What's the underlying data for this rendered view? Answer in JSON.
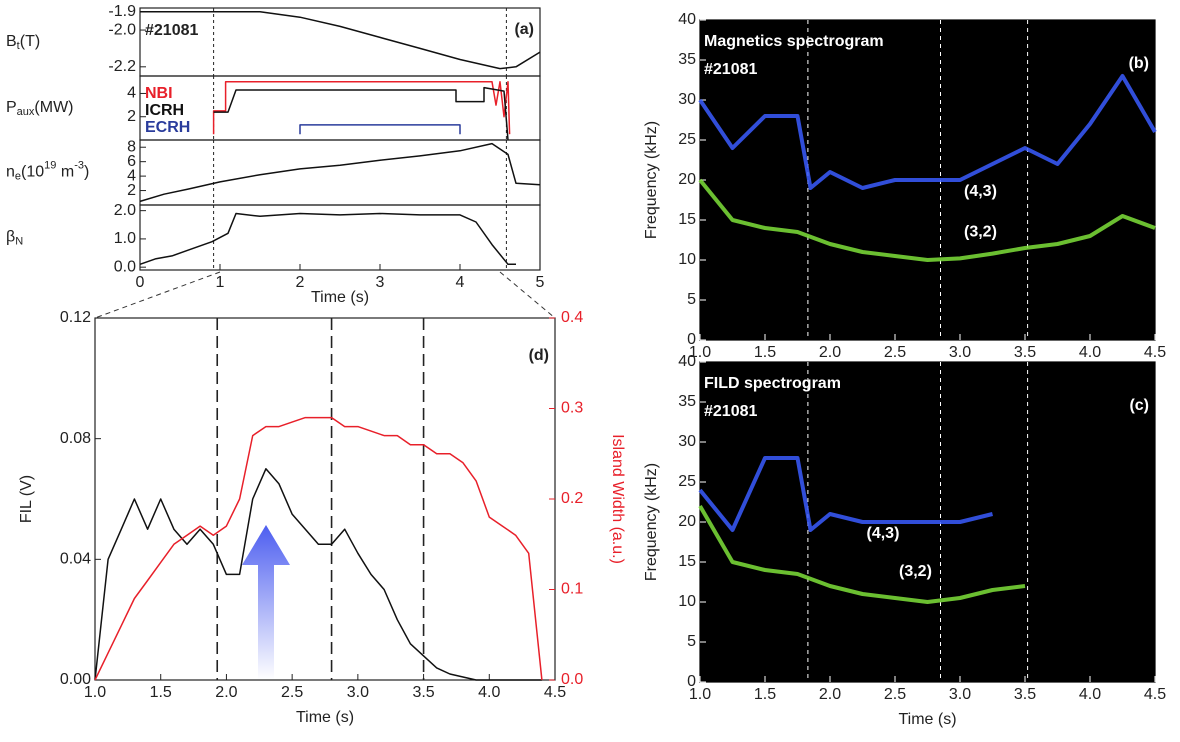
{
  "chart_data": [
    {
      "type": "line",
      "xlim": [
        0,
        5
      ],
      "ylim": [
        -2.25,
        -1.88
      ],
      "yticks": [
        -1.9,
        {
          "value": -2,
          "label": "-2.0"
        },
        -2.2
      ],
      "ylabel_parts": [
        {
          "text": "B"
        },
        {
          "text": "t",
          "script": "sub"
        },
        {
          "text": "(T)"
        }
      ],
      "annotation": "#21081",
      "label": "(a)",
      "vlines": [
        0.92,
        4.58
      ],
      "series": [
        {
          "color": "#111111",
          "x": [
            0,
            0.5,
            1,
            1.5,
            2,
            2.5,
            3,
            3.5,
            4,
            4.5,
            4.7,
            5
          ],
          "values": [
            -1.9,
            -1.9,
            -1.9,
            -1.9,
            -1.93,
            -1.98,
            -2.04,
            -2.1,
            -2.16,
            -2.21,
            -2.2,
            -2.12
          ]
        }
      ]
    },
    {
      "type": "line",
      "xlim": [
        0,
        5
      ],
      "ylim": [
        0,
        5.5
      ],
      "yticks": [
        2,
        4
      ],
      "legend": "upper left",
      "ylabel_parts": [
        {
          "text": "P"
        },
        {
          "text": "aux",
          "script": "sub"
        },
        {
          "text": "(MW)"
        }
      ],
      "vlines": [
        0.92,
        4.58
      ],
      "series": [
        {
          "name": "NBI",
          "color": "#e8202a",
          "x": [
            0.92,
            0.92,
            1.07,
            1.07,
            4.4,
            4.45,
            4.5,
            4.55,
            4.6,
            4.62
          ],
          "values": [
            0.5,
            2.5,
            2.5,
            5,
            5,
            3,
            5,
            2,
            5,
            0.5
          ]
        },
        {
          "name": "ICRH",
          "color": "#111111",
          "x": [
            0.92,
            1.1,
            1.2,
            3.95,
            3.95,
            4.3,
            4.3,
            4.55,
            4.6
          ],
          "values": [
            2.4,
            2.4,
            4.3,
            4.3,
            3.3,
            3.3,
            4.5,
            4.2,
            0
          ]
        },
        {
          "name": "ECRH",
          "color": "#2a3c9c",
          "x": [
            2,
            2,
            4,
            4
          ],
          "values": [
            0.5,
            1.3,
            1.3,
            0.5
          ]
        }
      ]
    },
    {
      "type": "line",
      "xlim": [
        0,
        5
      ],
      "ylim": [
        0,
        9
      ],
      "yticks": [
        2,
        4,
        6,
        8
      ],
      "ylabel_parts": [
        {
          "text": "n"
        },
        {
          "text": "e",
          "script": "sub"
        },
        {
          "text": "(10"
        },
        {
          "text": "19",
          "script": "sup"
        },
        {
          "text": " m"
        },
        {
          "text": "-3",
          "script": "sup"
        },
        {
          "text": ")"
        }
      ],
      "vlines": [
        0.92,
        4.58
      ],
      "series": [
        {
          "color": "#111111",
          "x": [
            0,
            0.3,
            0.6,
            1,
            1.5,
            2,
            2.5,
            3,
            3.5,
            4,
            4.4,
            4.6,
            4.7,
            5
          ],
          "values": [
            0.5,
            1.5,
            2.2,
            3.2,
            4.2,
            5,
            5.5,
            6.2,
            6.8,
            7.5,
            8.5,
            7,
            3,
            2.8
          ]
        }
      ]
    },
    {
      "type": "line",
      "xlim": [
        0,
        5
      ],
      "ylim": [
        -0.1,
        2.2
      ],
      "yticks": [
        {
          "value": 0,
          "label": "0.0"
        },
        {
          "value": 1,
          "label": "1.0"
        },
        {
          "value": 2,
          "label": "2.0"
        }
      ],
      "xticks": [
        0,
        1,
        2,
        3,
        4,
        5
      ],
      "xlabel": "Time (s)",
      "ylabel_parts": [
        {
          "text": "β"
        },
        {
          "text": "N",
          "script": "sub"
        }
      ],
      "vlines": [
        0.92,
        4.58
      ],
      "series": [
        {
          "color": "#111111",
          "x": [
            0,
            0.2,
            0.4,
            0.6,
            0.9,
            1.1,
            1.2,
            1.5,
            2,
            2.5,
            3,
            3.5,
            4,
            4.2,
            4.4,
            4.6,
            4.7
          ],
          "values": [
            0.1,
            0.3,
            0.4,
            0.6,
            0.9,
            1.2,
            1.9,
            1.8,
            1.9,
            1.85,
            1.9,
            1.85,
            1.85,
            1.6,
            0.8,
            0.1,
            0.1
          ]
        }
      ]
    },
    {
      "type": "line",
      "xlim": [
        1,
        4.5
      ],
      "ylim": [
        0,
        0.12
      ],
      "y2lim": [
        0,
        0.4
      ],
      "xticks": [
        {
          "value": 1,
          "label": "1.0"
        },
        1.5,
        {
          "value": 2,
          "label": "2.0"
        },
        2.5,
        {
          "value": 3,
          "label": "3.0"
        },
        3.5,
        {
          "value": 4,
          "label": "4.0"
        },
        4.5
      ],
      "yticks": [
        {
          "value": 0,
          "label": "0.00"
        },
        0.04,
        0.08,
        0.12
      ],
      "y2ticks": [
        {
          "value": 0,
          "label": "0.0"
        },
        0.1,
        0.2,
        0.3,
        0.4
      ],
      "xlabel": "Time (s)",
      "ylabel": "FIL (V)",
      "y2label": "Island Width (a.u.)",
      "y2color": "#e8202a",
      "label": "(d)",
      "vlines": [
        1.93,
        2.8,
        3.5
      ],
      "x": [
        1.0,
        1.1,
        1.2,
        1.3,
        1.4,
        1.5,
        1.6,
        1.7,
        1.8,
        1.9,
        2.0,
        2.1,
        2.2,
        2.3,
        2.4,
        2.5,
        2.6,
        2.7,
        2.8,
        2.9,
        3.0,
        3.1,
        3.2,
        3.3,
        3.4,
        3.5,
        3.6,
        3.7,
        3.8,
        3.9,
        4.0,
        4.1,
        4.2,
        4.3,
        4.4
      ],
      "series": [
        {
          "color": "#111111",
          "values": [
            0.0,
            0.04,
            0.05,
            0.06,
            0.05,
            0.06,
            0.05,
            0.045,
            0.05,
            0.045,
            0.035,
            0.035,
            0.06,
            0.07,
            0.065,
            0.055,
            0.05,
            0.045,
            0.045,
            0.05,
            0.042,
            0.035,
            0.03,
            0.02,
            0.012,
            0.008,
            0.004,
            0.002,
            0.001,
            0.0,
            0.0,
            0.0,
            0.0,
            0.0,
            0.0
          ]
        },
        {
          "color": "#e8202a",
          "axis": "y2",
          "values": [
            0.0,
            0.03,
            0.06,
            0.09,
            0.11,
            0.13,
            0.15,
            0.16,
            0.17,
            0.16,
            0.17,
            0.2,
            0.27,
            0.28,
            0.28,
            0.285,
            0.29,
            0.29,
            0.29,
            0.28,
            0.28,
            0.275,
            0.27,
            0.27,
            0.26,
            0.26,
            0.25,
            0.25,
            0.24,
            0.22,
            0.18,
            0.17,
            0.16,
            0.14,
            0.0
          ]
        }
      ]
    },
    {
      "type": "spectrogram",
      "xlim": [
        1,
        4.5
      ],
      "ylim": [
        0,
        40
      ],
      "yticks": [
        0,
        5,
        10,
        15,
        20,
        25,
        30,
        35,
        40
      ],
      "xticks": [
        {
          "value": 1,
          "label": "1.0"
        },
        1.5,
        {
          "value": 2,
          "label": "2.0"
        },
        2.5,
        {
          "value": 3,
          "label": "3.0"
        },
        3.5,
        {
          "value": 4,
          "label": "4.0"
        },
        4.5
      ],
      "ylabel": "Frequency (kHz)",
      "title": "Magnetics spectrogram",
      "subtitle": "#21081",
      "label": "(b)",
      "vlines": [
        1.83,
        2.85,
        3.52
      ],
      "series": [
        {
          "name": "(4,3)",
          "color": "#3a5cff",
          "x": [
            1.0,
            1.25,
            1.5,
            1.75,
            1.85,
            2.0,
            2.25,
            2.5,
            2.75,
            3.0,
            3.25,
            3.5,
            3.75,
            4.0,
            4.25,
            4.5
          ],
          "values": [
            30,
            24,
            28,
            28,
            19,
            21,
            19,
            20,
            20,
            20,
            22,
            24,
            22,
            27,
            33,
            26
          ]
        },
        {
          "name": "(3,2)",
          "color": "#7ee03a",
          "x": [
            1.0,
            1.25,
            1.5,
            1.75,
            2.0,
            2.25,
            2.5,
            2.75,
            3.0,
            3.25,
            3.5,
            3.75,
            4.0,
            4.25,
            4.5
          ],
          "values": [
            20,
            15,
            14,
            13.5,
            12,
            11,
            10.5,
            10,
            10.2,
            10.8,
            11.5,
            12,
            13,
            15.5,
            14
          ]
        }
      ]
    },
    {
      "type": "spectrogram",
      "xlim": [
        1,
        4.5
      ],
      "ylim": [
        0,
        40
      ],
      "yticks": [
        0,
        5,
        10,
        15,
        20,
        25,
        30,
        35,
        40
      ],
      "xticks": [
        {
          "value": 1,
          "label": "1.0"
        },
        1.5,
        {
          "value": 2,
          "label": "2.0"
        },
        2.5,
        {
          "value": 3,
          "label": "3.0"
        },
        3.5,
        {
          "value": 4,
          "label": "4.0"
        },
        4.5
      ],
      "xlabel": "Time (s)",
      "ylabel": "Frequency (kHz)",
      "title": "FILD spectrogram",
      "subtitle": "#21081",
      "label": "(c)",
      "vlines": [
        1.83,
        2.85,
        3.52
      ],
      "series": [
        {
          "name": "(4,3)",
          "color": "#3a5cff",
          "x": [
            1.0,
            1.25,
            1.5,
            1.75,
            1.85,
            2.0,
            2.25,
            2.5,
            2.75,
            3.0,
            3.25
          ],
          "values": [
            24,
            19,
            28,
            28,
            19,
            21,
            20,
            20,
            20,
            20,
            21
          ]
        },
        {
          "name": "(3,2)",
          "color": "#7ee03a",
          "x": [
            1.0,
            1.25,
            1.5,
            1.75,
            2.0,
            2.25,
            2.5,
            2.75,
            3.0,
            3.25,
            3.5
          ],
          "values": [
            22,
            15,
            14,
            13.5,
            12,
            11,
            10.5,
            10,
            10.5,
            11.5,
            12
          ]
        }
      ]
    }
  ]
}
